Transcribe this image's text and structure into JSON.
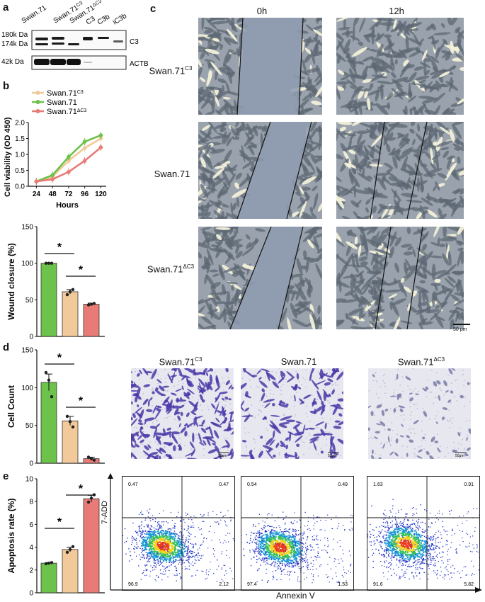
{
  "panels": {
    "a": "a",
    "b": "b",
    "c": "c",
    "d": "d",
    "e": "e"
  },
  "colors": {
    "sw71_c3": "#f2c99a",
    "sw71": "#6cc24a",
    "sw71_dc3": "#e87b76"
  },
  "panel_a": {
    "lanes": [
      "Swan.71",
      "Swan.71C3",
      "Swan.71ΔC3",
      "C3",
      "C3b",
      "iC3b"
    ],
    "lane_base": [
      "Swan.71",
      "Swan.71",
      "Swan.71",
      "C3",
      "C3b",
      "iC3b"
    ],
    "lane_sup": [
      "",
      "C3",
      "ΔC3",
      "",
      "",
      ""
    ],
    "markers": [
      "180k Da",
      "174k Da",
      "42k Da"
    ],
    "proteins": [
      "C3",
      "ACTB"
    ]
  },
  "panel_c": {
    "time_labels": [
      "0h",
      "12h"
    ],
    "row_labels_base": [
      "Swan.71",
      "Swan.71",
      "Swan.71"
    ],
    "row_labels_sup": [
      "C3",
      "",
      "ΔC3"
    ],
    "scale_bar": "50 μm"
  },
  "panel_d_images": {
    "labels_base": [
      "Swan.71",
      "Swan.71",
      "Swan.71"
    ],
    "labels_sup": [
      "C3",
      "",
      "ΔC3"
    ],
    "scale_bars": [
      "50μm",
      "50μm",
      "50μm"
    ]
  },
  "panel_e_flow": {
    "xlabel": "Annexin V",
    "ylabel": "7-ADD",
    "quadrants": [
      {
        "ul": "0.47",
        "ur": "0.47",
        "ll": "96.9",
        "lr": "2.12"
      },
      {
        "ul": "0.54",
        "ur": "0.49",
        "ll": "97.4",
        "lr": "1.53"
      },
      {
        "ul": "1.63",
        "ur": "0.91",
        "ll": "91.6",
        "lr": "5.82"
      }
    ]
  },
  "chart_data": [
    {
      "type": "line",
      "panel": "b",
      "x": [
        24,
        48,
        72,
        96,
        120
      ],
      "xticks": [
        "24",
        "48",
        "72",
        "96",
        "120"
      ],
      "xlabel": "Hours",
      "ylabel": "Cell viability (OD 450)",
      "ylim": [
        0,
        2.0
      ],
      "yticks": [
        "0.0",
        "0.5",
        "1.0",
        "1.5",
        "2.0"
      ],
      "legend_placement": "top-left",
      "series": [
        {
          "name": "Swan.71C3",
          "name_base": "Swan.71",
          "name_sup": "C3",
          "values": [
            0.15,
            0.3,
            0.8,
            1.2,
            1.5
          ],
          "color": "#f2c99a"
        },
        {
          "name": "Swan.71",
          "name_base": "Swan.71",
          "name_sup": "",
          "values": [
            0.15,
            0.35,
            0.92,
            1.4,
            1.6
          ],
          "color": "#6cc24a"
        },
        {
          "name": "Swan.71ΔC3",
          "name_base": "Swan.71",
          "name_sup": "ΔC3",
          "values": [
            0.15,
            0.22,
            0.45,
            0.8,
            1.22
          ],
          "color": "#e87b76"
        }
      ]
    },
    {
      "type": "bar",
      "panel": "b-lower",
      "categories": [
        "Swan.71",
        "Swan.71C3",
        "Swan.71ΔC3"
      ],
      "values": [
        100,
        61,
        44
      ],
      "errors": [
        0.5,
        3,
        1.5
      ],
      "points": [
        [
          100,
          100,
          100
        ],
        [
          57,
          61,
          64
        ],
        [
          43,
          44,
          45
        ]
      ],
      "ylabel": "Wound closure (%)",
      "ylim": [
        0,
        150
      ],
      "yticks": [
        "0",
        "50",
        "100",
        "150"
      ],
      "significance": [
        "*",
        "*"
      ]
    },
    {
      "type": "bar",
      "panel": "d",
      "categories": [
        "Swan.71",
        "Swan.71C3",
        "Swan.71ΔC3"
      ],
      "values": [
        107,
        56,
        6
      ],
      "errors": [
        11,
        6,
        2
      ],
      "points": [
        [
          120,
          110,
          88
        ],
        [
          62,
          55,
          48
        ],
        [
          8,
          6,
          4
        ]
      ],
      "ylabel": "Cell Count",
      "ylim": [
        0,
        150
      ],
      "yticks": [
        "0",
        "50",
        "100",
        "150"
      ],
      "significance": [
        "*",
        "*"
      ]
    },
    {
      "type": "bar",
      "panel": "e",
      "categories": [
        "Swan.71",
        "Swan.71C3",
        "Swan.71ΔC3"
      ],
      "values": [
        2.6,
        3.8,
        8.25
      ],
      "errors": [
        0.05,
        0.2,
        0.3
      ],
      "points": [
        [
          2.55,
          2.6,
          2.65
        ],
        [
          3.55,
          3.8,
          4.05
        ],
        [
          7.95,
          8.3,
          8.6
        ]
      ],
      "ylabel": "Apoptosis rate (%)",
      "ylim": [
        0,
        10
      ],
      "yticks": [
        "0",
        "2",
        "4",
        "6",
        "8",
        "10"
      ],
      "significance": [
        "*",
        "*"
      ]
    }
  ]
}
